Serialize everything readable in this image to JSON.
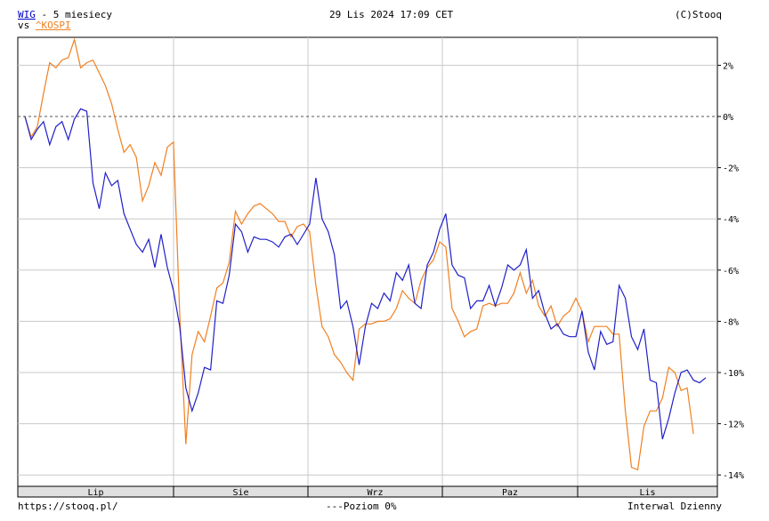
{
  "header": {
    "symbol": "WIG",
    "period": " - 5 miesiecy",
    "vs_prefix": "vs ",
    "compare": "^KOSPI",
    "datetime": "29 Lis 2024 17:09 CET",
    "copyright": "(C)Stooq"
  },
  "footer": {
    "url": "https://stooq.pl/",
    "level_legend": "---Poziom 0%",
    "interval": "Interwal Dzienny"
  },
  "colors": {
    "wig": "#2020c8",
    "kospi": "#f08020",
    "grid": "#c8c8c8",
    "axis_band": "#e0e0e0"
  },
  "chart_data": {
    "type": "line",
    "months": [
      "Lip",
      "Sie",
      "Wrz",
      "Paz",
      "Lis"
    ],
    "y_ticks": [
      "2%",
      "0%",
      "-2%",
      "-4%",
      "-6%",
      "-8%",
      "-10%",
      "-12%",
      "-14%"
    ],
    "ylim": [
      -14,
      3.5
    ],
    "xlim": [
      0,
      109
    ],
    "reference_line": 0,
    "series": [
      {
        "name": "WIG",
        "color": "#2020c8",
        "values": [
          0,
          -0.9,
          -0.5,
          -0.2,
          -1.1,
          -0.4,
          -0.2,
          -0.9,
          -0.1,
          0.3,
          0.2,
          -2.6,
          -3.6,
          -2.2,
          -2.7,
          -2.5,
          -3.8,
          -4.4,
          -5.0,
          -5.3,
          -4.8,
          -5.9,
          -4.6,
          -5.9,
          -6.8,
          -8.2,
          -10.6,
          -11.5,
          -10.8,
          -9.8,
          -9.9,
          -7.2,
          -7.3,
          -6.2,
          -4.2,
          -4.5,
          -5.3,
          -4.7,
          -4.8,
          -4.8,
          -4.9,
          -5.1,
          -4.7,
          -4.6,
          -5.0,
          -4.6,
          -4.2,
          -2.4,
          -4.0,
          -4.5,
          -5.4,
          -7.5,
          -7.2,
          -8.2,
          -9.7,
          -8.2,
          -7.3,
          -7.5,
          -6.9,
          -7.2,
          -6.1,
          -6.4,
          -5.8,
          -7.3,
          -7.5,
          -5.8,
          -5.3,
          -4.4,
          -3.8,
          -5.8,
          -6.2,
          -6.3,
          -7.5,
          -7.2,
          -7.2,
          -6.6,
          -7.4,
          -6.7,
          -5.8,
          -6.0,
          -5.8,
          -5.2,
          -7.1,
          -6.8,
          -7.7,
          -8.3,
          -8.1,
          -8.5,
          -8.6,
          -8.6,
          -7.6,
          -9.2,
          -9.9,
          -8.4,
          -8.9,
          -8.8,
          -6.6,
          -7.1,
          -8.6,
          -9.1,
          -8.3,
          -10.3,
          -10.4,
          -12.6,
          -11.8,
          -10.8,
          -10.0,
          -9.9,
          -10.3,
          -10.4,
          -10.2
        ]
      },
      {
        "name": "^KOSPI",
        "color": "#f08020",
        "values": [
          0,
          -0.8,
          -0.4,
          0.9,
          2.1,
          1.9,
          2.2,
          2.3,
          3.0,
          1.9,
          2.1,
          2.2,
          1.7,
          1.2,
          0.5,
          -0.5,
          -1.4,
          -1.1,
          -1.6,
          -3.3,
          -2.7,
          -1.8,
          -2.3,
          -1.2,
          -1.0,
          -7.7,
          -12.8,
          -9.3,
          -8.4,
          -8.8,
          -7.8,
          -6.7,
          -6.5,
          -5.7,
          -3.7,
          -4.2,
          -3.8,
          -3.5,
          -3.4,
          -3.6,
          -3.8,
          -4.1,
          -4.1,
          -4.7,
          -4.3,
          -4.2,
          -4.5,
          -6.6,
          -8.2,
          -8.6,
          -9.3,
          -9.6,
          -10.0,
          -10.3,
          -8.3,
          -8.1,
          -8.1,
          -8.0,
          -8.0,
          -7.9,
          -7.5,
          -6.8,
          -7.1,
          -7.3,
          -6.4,
          -5.9,
          -5.6,
          -4.9,
          -5.1,
          -7.5,
          -8.0,
          -8.6,
          -8.4,
          -8.3,
          -7.4,
          -7.3,
          -7.4,
          -7.3,
          -7.3,
          -6.9,
          -6.1,
          -6.9,
          -6.4,
          -7.4,
          -7.8,
          -7.4,
          -8.2,
          -7.8,
          -7.6,
          -7.1,
          -7.6,
          -8.8,
          -8.2,
          -8.2,
          -8.2,
          -8.5,
          -8.5,
          -11.5,
          -13.7,
          -13.8,
          -12.1,
          -11.5,
          -11.5,
          -11.0,
          -9.8,
          -10.0,
          -10.7,
          -10.6,
          -12.4
        ]
      }
    ]
  }
}
